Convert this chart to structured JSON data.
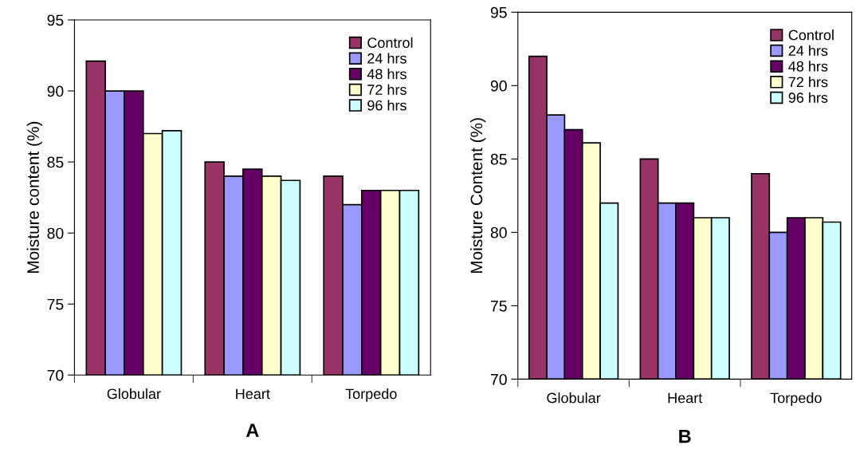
{
  "chart_data": [
    {
      "type": "bar",
      "ylabel": "Moisture content (%)",
      "categories": [
        "Globular",
        "Heart",
        "Torpedo"
      ],
      "ylim": [
        70,
        95
      ],
      "yticks": [
        70,
        75,
        80,
        85,
        90,
        95
      ],
      "legend": "top right",
      "grid": false,
      "annotations": [
        "A"
      ],
      "series": [
        {
          "name": "Control",
          "color": "#993366",
          "values": [
            92.1,
            85,
            84
          ]
        },
        {
          "name": "24 hrs",
          "color": "#9999ff",
          "values": [
            90,
            84,
            82
          ]
        },
        {
          "name": "48 hrs",
          "color": "#660066",
          "values": [
            90,
            84.5,
            83
          ]
        },
        {
          "name": "72 hrs",
          "color": "#ffffcc",
          "values": [
            87,
            84,
            83
          ]
        },
        {
          "name": "96 hrs",
          "color": "#ccffff",
          "values": [
            87.2,
            83.7,
            83
          ]
        }
      ]
    },
    {
      "type": "bar",
      "ylabel": "Moisture Content (%)",
      "categories": [
        "Globular",
        "Heart",
        "Torpedo"
      ],
      "ylim": [
        70,
        95
      ],
      "yticks": [
        70,
        75,
        80,
        85,
        90,
        95
      ],
      "legend": "top right",
      "grid": false,
      "annotations": [
        "B"
      ],
      "series": [
        {
          "name": "Control",
          "color": "#993366",
          "values": [
            92,
            85,
            84
          ]
        },
        {
          "name": "24 hrs",
          "color": "#9999ff",
          "values": [
            88,
            82,
            80
          ]
        },
        {
          "name": "48 hrs",
          "color": "#660066",
          "values": [
            87,
            82,
            81
          ]
        },
        {
          "name": "72 hrs",
          "color": "#ffffcc",
          "values": [
            86.1,
            81,
            81
          ]
        },
        {
          "name": "96 hrs",
          "color": "#ccffff",
          "values": [
            82,
            81,
            80.7
          ]
        }
      ]
    }
  ]
}
